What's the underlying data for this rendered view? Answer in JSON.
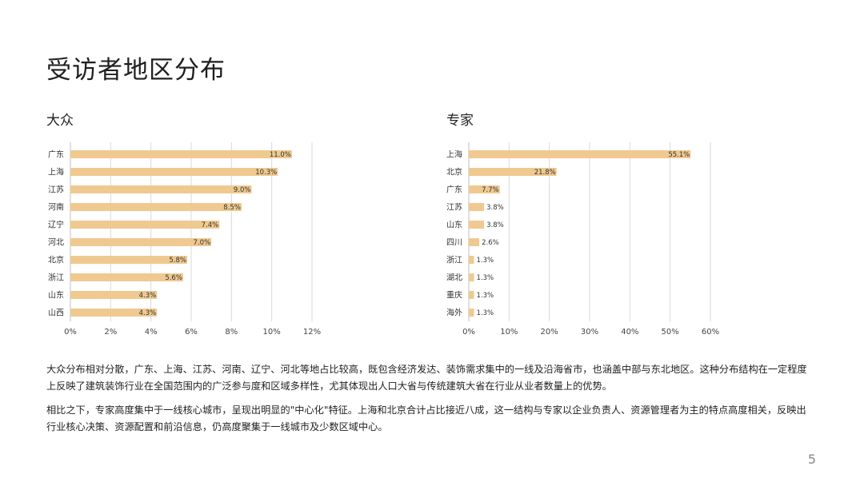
{
  "page": {
    "title": "受访者地区分布",
    "page_number": "5"
  },
  "colors": {
    "bar": "#EFC98F",
    "grid": "#D9D9D9",
    "axis": "#BFBFBF"
  },
  "chart_data": [
    {
      "type": "bar",
      "orientation": "horizontal",
      "title": "大众",
      "categories": [
        "广东",
        "上海",
        "江苏",
        "河南",
        "辽宁",
        "河北",
        "北京",
        "浙江",
        "山东",
        "山西"
      ],
      "values": [
        11.0,
        10.3,
        9.0,
        8.5,
        7.4,
        7.0,
        5.8,
        5.6,
        4.3,
        4.3
      ],
      "value_labels": [
        "11.0%",
        "10.3%",
        "9.0%",
        "8.5%",
        "7.4%",
        "7.0%",
        "5.8%",
        "5.6%",
        "4.3%",
        "4.3%"
      ],
      "xlim": [
        0,
        12
      ],
      "xticks": [
        "0%",
        "2%",
        "4%",
        "6%",
        "8%",
        "10%",
        "12%"
      ],
      "grid": true
    },
    {
      "type": "bar",
      "orientation": "horizontal",
      "title": "专家",
      "categories": [
        "上海",
        "北京",
        "广东",
        "江苏",
        "山东",
        "四川",
        "浙江",
        "湖北",
        "重庆",
        "海外"
      ],
      "values": [
        55.1,
        21.8,
        7.7,
        3.8,
        3.8,
        2.6,
        1.3,
        1.3,
        1.3,
        1.3
      ],
      "value_labels": [
        "55.1%",
        "21.8%",
        "7.7%",
        "3.8%",
        "3.8%",
        "2.6%",
        "1.3%",
        "1.3%",
        "1.3%",
        "1.3%"
      ],
      "xlim": [
        0,
        60
      ],
      "xticks": [
        "0%",
        "10%",
        "20%",
        "30%",
        "40%",
        "50%",
        "60%"
      ],
      "grid": true
    }
  ],
  "paragraphs": [
    "大众分布相对分散，广东、上海、江苏、河南、辽宁、河北等地占比较高，既包含经济发达、装饰需求集中的一线及沿海省市，也涵盖中部与东北地区。这种分布结构在一定程度上反映了建筑装饰行业在全国范围内的广泛参与度和区域多样性，尤其体现出人口大省与传统建筑大省在行业从业者数量上的优势。",
    "相比之下，专家高度集中于一线核心城市，呈现出明显的\"中心化\"特征。上海和北京合计占比接近八成，这一结构与专家以企业负责人、资源管理者为主的特点高度相关，反映出行业核心决策、资源配置和前沿信息，仍高度聚集于一线城市及少数区域中心。"
  ]
}
